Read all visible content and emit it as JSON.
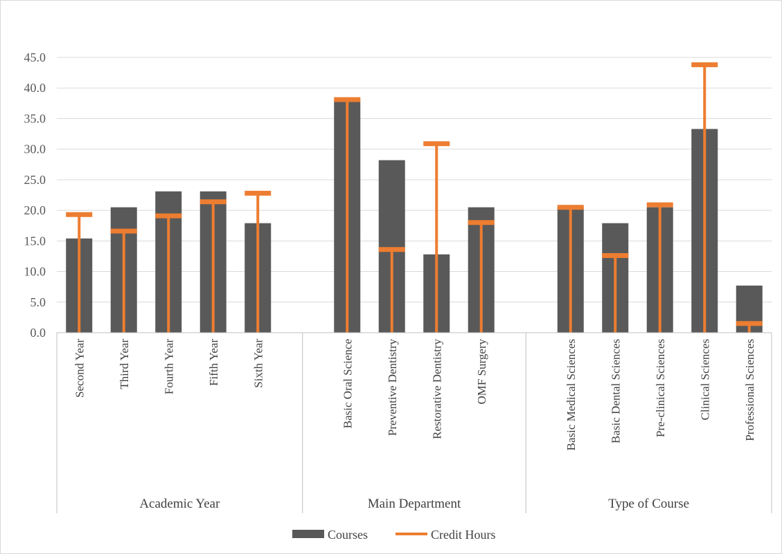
{
  "chart_data": {
    "type": "bar",
    "y_axis": {
      "min": 0,
      "max": 45,
      "step": 5,
      "tick_labels": [
        "0.0",
        "5.0",
        "10.0",
        "15.0",
        "20.0",
        "25.0",
        "30.0",
        "35.0",
        "40.0",
        "45.0"
      ]
    },
    "grid": true,
    "legend_position": "bottom",
    "groups": [
      {
        "name": "Academic Year",
        "categories": [
          "Second Year",
          "Third Year",
          "Fourth Year",
          "Fifth Year",
          "Sixth Year"
        ]
      },
      {
        "name": "Main Department",
        "categories": [
          "Basic Oral Science",
          "Preventive Dentistry",
          "Restorative Dentistry",
          "OMF Surgery"
        ]
      },
      {
        "name": "Type of Course",
        "categories": [
          "Basic Medical Sciences",
          "Basic Dental Sciences",
          "Pre-clinical Sciences",
          "Clinical Sciences",
          "Professional Sciences"
        ]
      }
    ],
    "categories": [
      "Second Year",
      "Third Year",
      "Fourth Year",
      "Fifth Year",
      "Sixth Year",
      "Basic Oral Science",
      "Preventive Dentistry",
      "Restorative Dentistry",
      "OMF Surgery",
      "Basic Medical Sciences",
      "Basic Dental Sciences",
      "Pre-clinical Sciences",
      "Clinical Sciences",
      "Professional Sciences"
    ],
    "series": [
      {
        "name": "Courses",
        "color": "#595959",
        "style": "bar",
        "values": [
          15.4,
          20.5,
          23.1,
          23.1,
          17.9,
          38.0,
          28.2,
          12.8,
          20.5,
          20.5,
          17.9,
          20.5,
          33.3,
          7.7
        ]
      },
      {
        "name": "Credit Hours",
        "color": "#ed7d31",
        "style": "marker-with-stem",
        "values": [
          19.3,
          16.6,
          19.1,
          21.4,
          22.8,
          38.1,
          13.6,
          30.9,
          18.0,
          20.5,
          12.6,
          20.9,
          43.8,
          1.5
        ]
      }
    ]
  }
}
